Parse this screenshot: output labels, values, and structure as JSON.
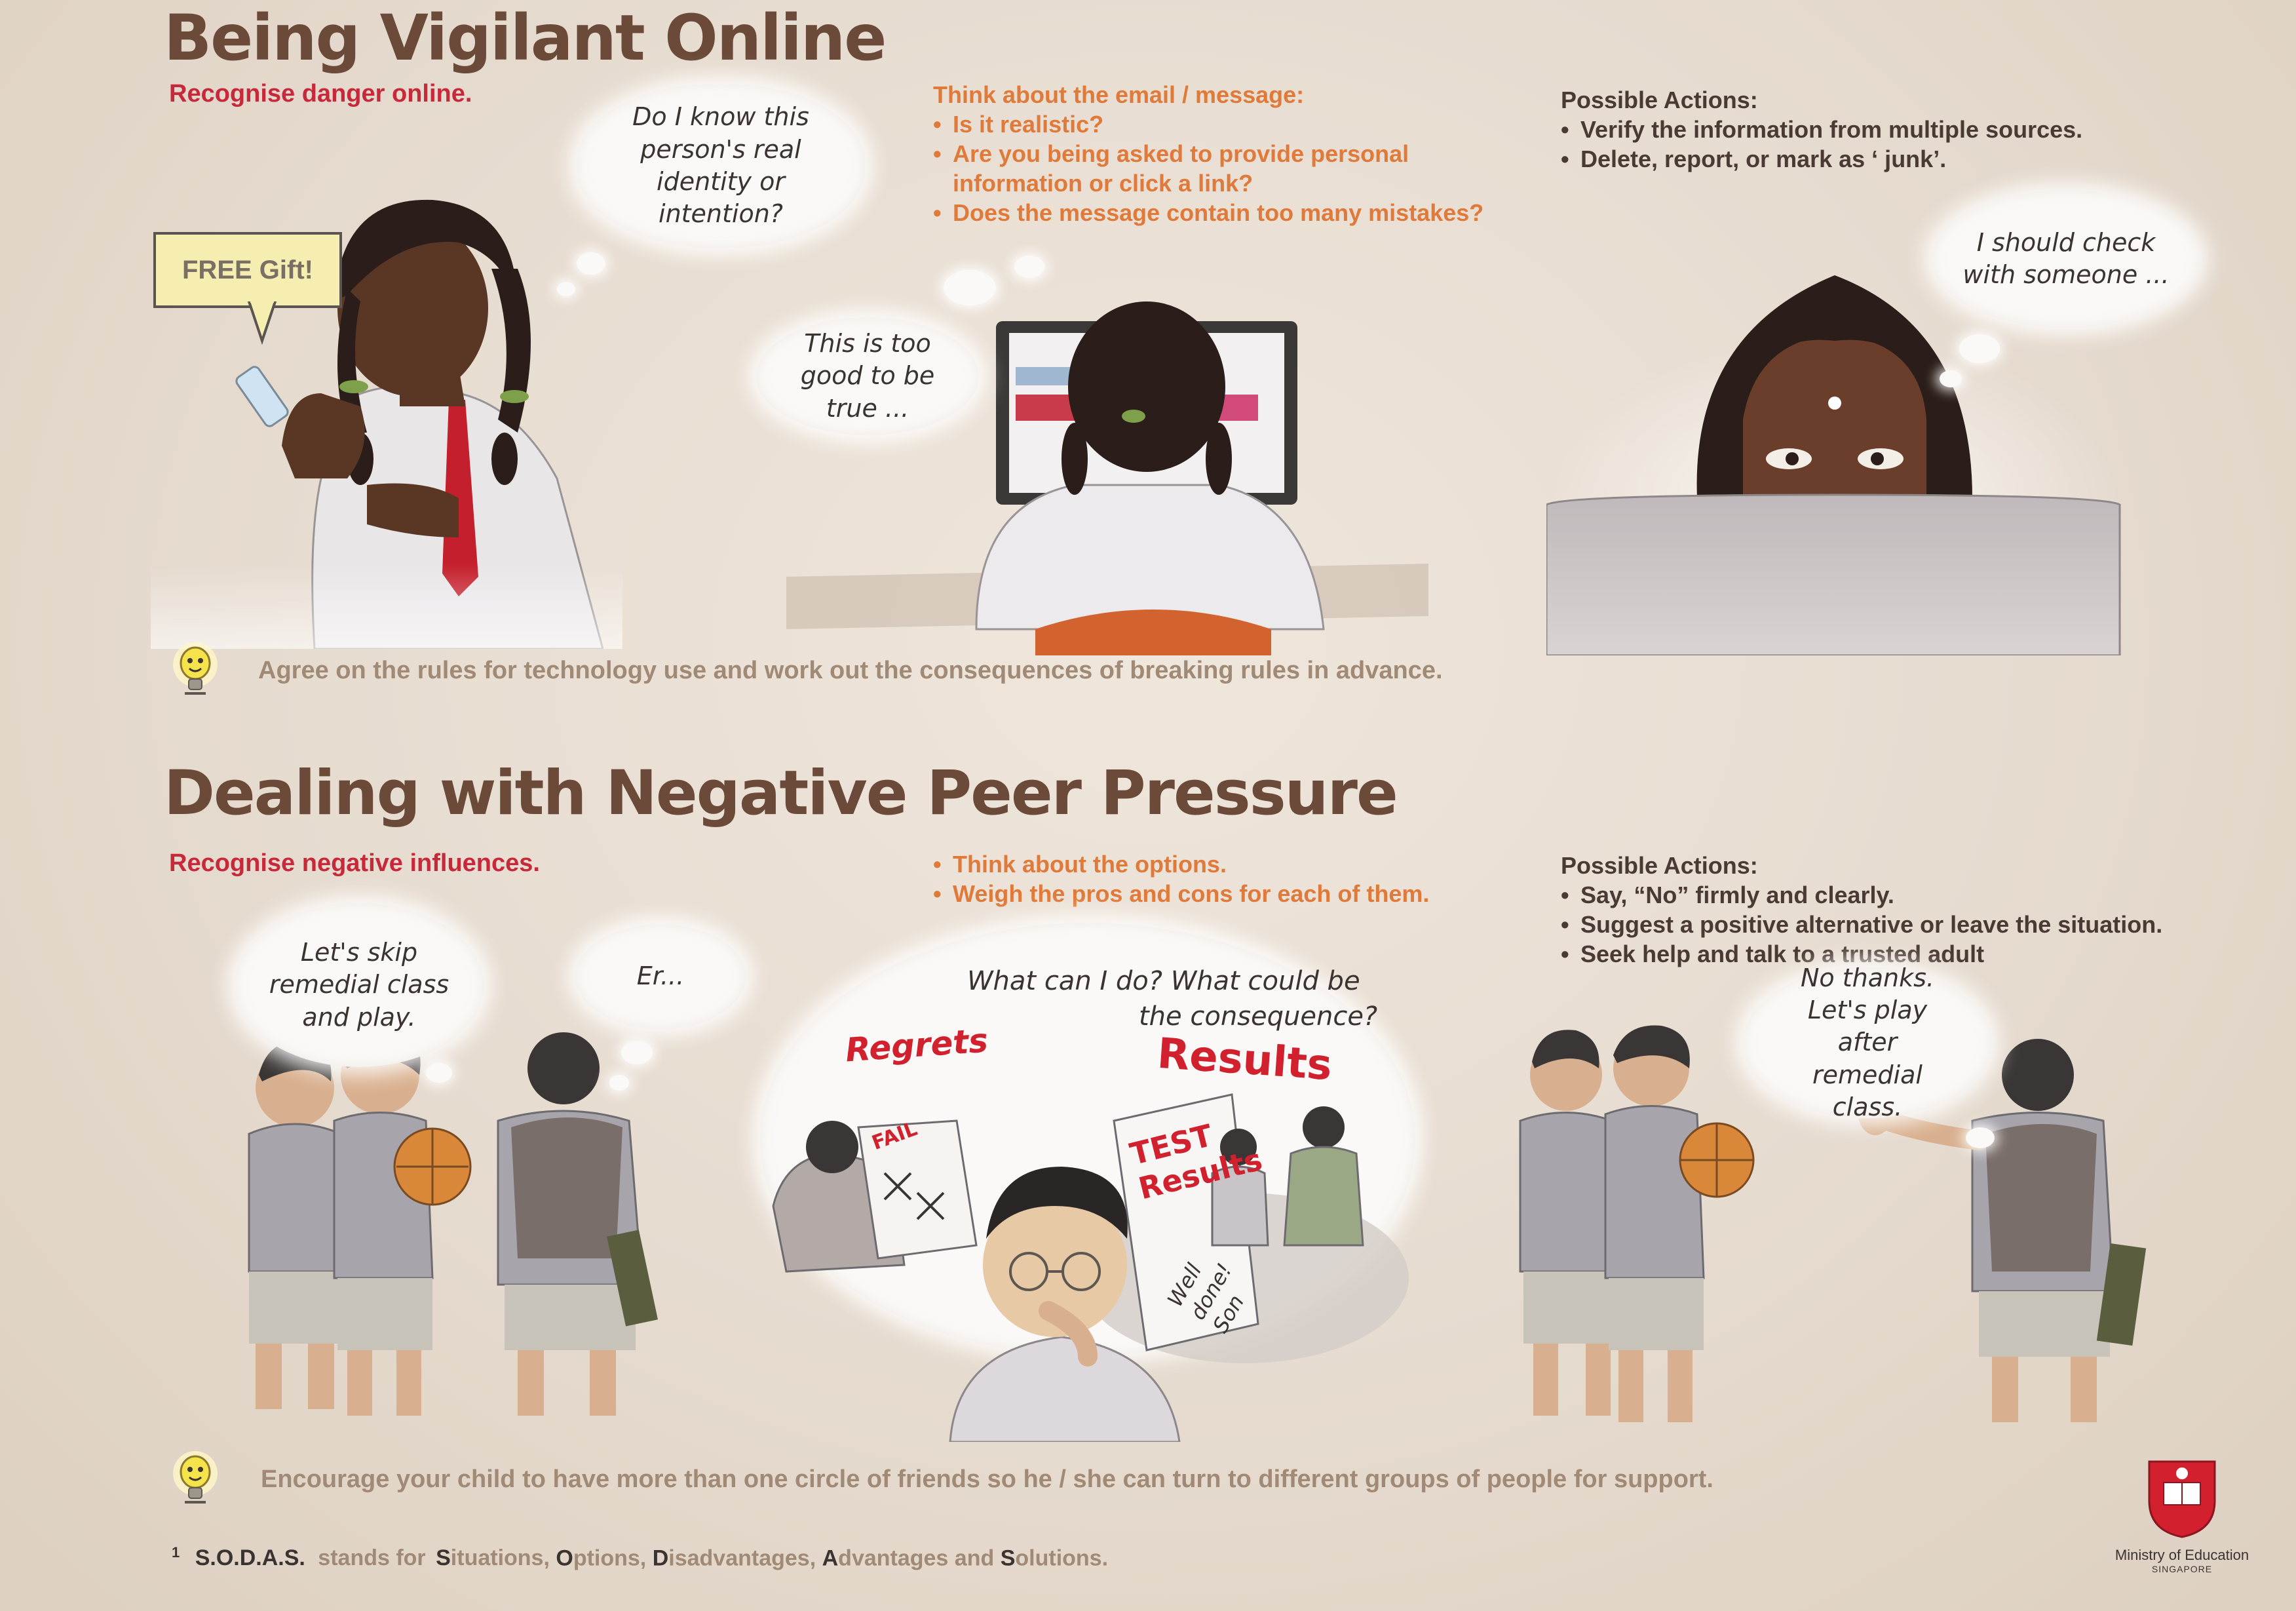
{
  "top": {
    "title": "Being Vigilant Online",
    "subtitle": "Recognise danger online.",
    "bubble_identity": "Do I know this person's real identity or intention?",
    "sign_free_gift": "FREE Gift!",
    "bubble_too_good": "This is too good to be true ...",
    "think_heading": "Think about the email / message:",
    "think_items": [
      "Is it realistic?",
      "Are you being asked to provide personal information or click a link?",
      "Does the message contain too many mistakes?"
    ],
    "actions_heading": "Possible Actions:",
    "actions_items": [
      "Verify the information from multiple sources.",
      "Delete, report, or mark as ‘ junk’."
    ],
    "bubble_check": "I should check with someone ...",
    "tip": "Agree on the rules for technology use and work out the consequences of breaking rules in advance."
  },
  "bottom": {
    "title": "Dealing with Negative Peer Pressure",
    "subtitle": "Recognise negative influences.",
    "think_items": [
      "Think about the options.",
      "Weigh the pros and cons for each of them."
    ],
    "actions_heading": "Possible Actions:",
    "actions_items": [
      "Say, “No” firmly and clearly.",
      "Suggest a positive alternative or leave the situation.",
      "Seek help and talk to a trusted adult"
    ],
    "bubble_skip": "Let's skip remedial class and play.",
    "bubble_er": "Er...",
    "thought_line1": "What can I do?  What could be",
    "thought_line2": "the consequence?",
    "label_regrets": "Regrets",
    "label_results": "Results",
    "label_fail": "FAIL",
    "label_test_results": "TEST Results",
    "label_well_done": "Well done! Son",
    "bubble_no_thanks": "No thanks. Let's play after remedial class.",
    "tip": "Encourage your child to have more than one circle of friends so he / she can turn to different groups of people for support."
  },
  "footnote": {
    "marker": "1",
    "acronym": "S.O.D.A.S.",
    "text_before": "stands for",
    "words": [
      {
        "initial": "S",
        "rest": "ituations,"
      },
      {
        "initial": "O",
        "rest": "ptions,"
      },
      {
        "initial": "D",
        "rest": "isadvantages,"
      },
      {
        "initial": "A",
        "rest": "dvantages and"
      },
      {
        "initial": "S",
        "rest": "olutions."
      }
    ]
  },
  "logo": {
    "name": "Ministry of Education",
    "country": "SINGAPORE",
    "icon": "moe-crest-icon",
    "color": "#d3202f"
  },
  "colors": {
    "title": "#6b4a3a",
    "red": "#c8293a",
    "orange": "#e07a3a",
    "tip": "#a08a76"
  }
}
